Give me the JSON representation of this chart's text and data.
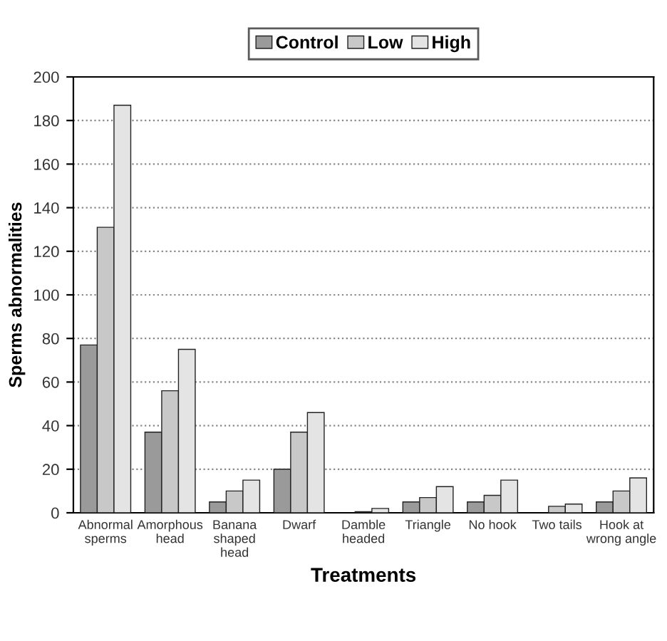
{
  "chart_data": {
    "type": "bar",
    "xlabel": "Treatments",
    "ylabel": "Sperms abnormalities",
    "categories": [
      "Abnormal\nsperms",
      "Amorphous\nhead",
      "Banana\nshaped\nhead",
      "Dwarf",
      "Damble\nheaded",
      "Triangle",
      "No hook",
      "Two tails",
      "Hook at\nwrong angle"
    ],
    "series": [
      {
        "name": "Control",
        "color": "#9a9a9a",
        "values": [
          77,
          37,
          5,
          20,
          null,
          5,
          5,
          null,
          5
        ]
      },
      {
        "name": "Low",
        "color": "#c8c8c8",
        "values": [
          131,
          56,
          10,
          37,
          0.5,
          7,
          8,
          3,
          10
        ]
      },
      {
        "name": "High",
        "color": "#e4e4e4",
        "values": [
          187,
          75,
          15,
          46,
          2,
          12,
          15,
          4,
          16
        ]
      }
    ],
    "ylim": [
      0,
      200
    ],
    "yticks": [
      0,
      20,
      40,
      60,
      80,
      100,
      120,
      140,
      160,
      180,
      200
    ],
    "grid": "y",
    "legend": "top"
  }
}
